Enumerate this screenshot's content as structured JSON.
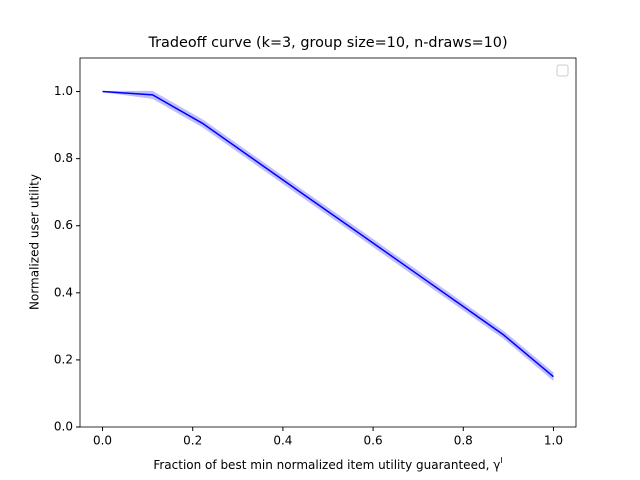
{
  "chart_data": {
    "type": "line",
    "title": "Tradeoff curve (k=3, group size=10, n-draws=10)",
    "x_label": "Fraction of best min normalized item utility guaranteed, γ",
    "x_label_superscript": "I",
    "y_label": "Normalized user utility",
    "x": [
      0,
      0.111,
      0.222,
      0.333,
      0.444,
      0.556,
      0.667,
      0.778,
      0.889,
      1.0
    ],
    "series": [
      {
        "color": "#0000ff",
        "values": [
          1.0,
          0.99,
          0.905,
          0.8,
          0.695,
          0.59,
          0.485,
          0.38,
          0.275,
          0.15
        ],
        "band_lower": [
          0.998,
          0.978,
          0.893,
          0.788,
          0.683,
          0.578,
          0.473,
          0.368,
          0.263,
          0.137
        ],
        "band_upper": [
          1.002,
          1.002,
          0.917,
          0.812,
          0.707,
          0.602,
          0.497,
          0.392,
          0.287,
          0.163
        ],
        "band_color": "#0000ff"
      }
    ],
    "xlim": [
      -0.05,
      1.05
    ],
    "ylim": [
      0,
      1.1
    ],
    "xticks": [
      {
        "value": 0,
        "label": "0.0"
      },
      0.2,
      0.4,
      0.6,
      0.8,
      {
        "value": 1,
        "label": "1.0"
      }
    ],
    "yticks": [
      {
        "value": 0,
        "label": "0.0"
      },
      0.2,
      0.4,
      0.6,
      0.8,
      {
        "value": 1,
        "label": "1.0"
      }
    ],
    "grid": false,
    "legend": "upper right"
  }
}
